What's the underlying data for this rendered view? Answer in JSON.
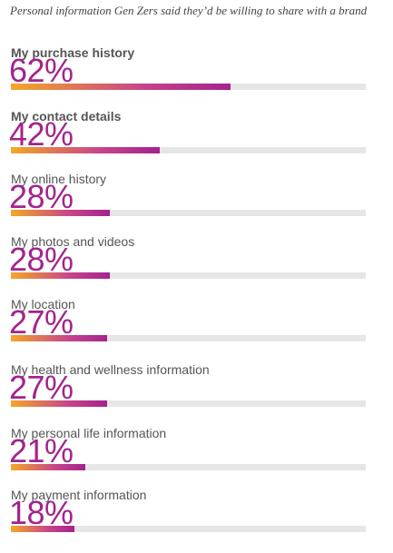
{
  "chart_data": {
    "type": "bar",
    "orientation": "horizontal",
    "title": "Personal information Gen Zers said they’d be willing to share with a brand",
    "unit": "%",
    "xlim": [
      0,
      100
    ],
    "grid": false,
    "legend": "none",
    "categories": [
      "My purchase history",
      "My contact details",
      "My online history",
      "My photos and videos",
      "My location",
      "My health and wellness information",
      "My personal life information",
      "My payment information"
    ],
    "values": [
      62,
      42,
      28,
      28,
      27,
      27,
      21,
      18
    ],
    "value_labels": [
      "62%",
      "42%",
      "28%",
      "28%",
      "27%",
      "27%",
      "21%",
      "18%"
    ],
    "bold_categories": [
      true,
      true,
      false,
      false,
      false,
      false,
      false,
      false
    ]
  },
  "colors": {
    "accent": "#a3238e",
    "gradient_start": "#f4a726",
    "track": "#e6e6e6"
  }
}
